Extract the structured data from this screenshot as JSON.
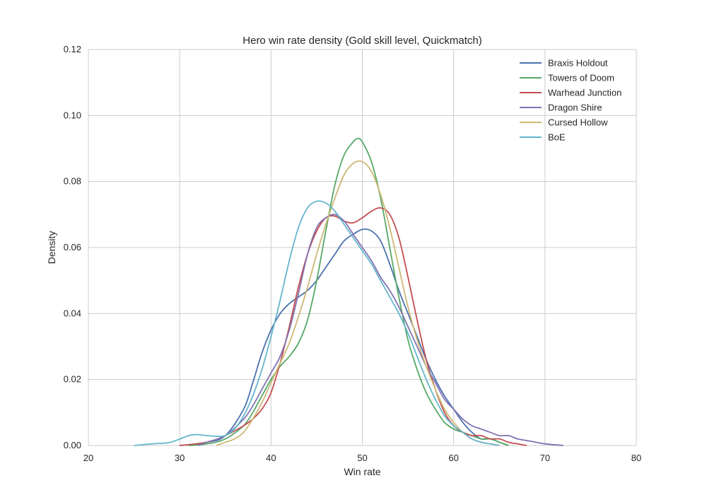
{
  "chart_data": {
    "type": "line",
    "title": "Hero win rate density (Gold skill level, Quickmatch)",
    "xlabel": "Win rate",
    "ylabel": "Density",
    "xlim": [
      20,
      80
    ],
    "ylim": [
      0,
      0.12
    ],
    "xticks": [
      "20",
      "30",
      "40",
      "50",
      "60",
      "70",
      "80"
    ],
    "yticks": [
      "0.00",
      "0.02",
      "0.04",
      "0.06",
      "0.08",
      "0.10",
      "0.12"
    ],
    "grid": true,
    "legend_position": "top-right",
    "series": [
      {
        "name": "Braxis Holdout",
        "color": "#4c72b0",
        "points": [
          [
            30,
            0.0
          ],
          [
            33,
            0.001
          ],
          [
            35,
            0.003
          ],
          [
            37,
            0.011
          ],
          [
            38,
            0.019
          ],
          [
            39,
            0.028
          ],
          [
            40,
            0.035
          ],
          [
            41,
            0.04
          ],
          [
            42,
            0.043
          ],
          [
            43,
            0.045
          ],
          [
            44,
            0.047
          ],
          [
            45,
            0.05
          ],
          [
            46,
            0.054
          ],
          [
            47,
            0.058
          ],
          [
            48,
            0.062
          ],
          [
            49,
            0.064
          ],
          [
            50,
            0.0655
          ],
          [
            51,
            0.065
          ],
          [
            52,
            0.062
          ],
          [
            53,
            0.055
          ],
          [
            54,
            0.047
          ],
          [
            55,
            0.04
          ],
          [
            56,
            0.033
          ],
          [
            57,
            0.026
          ],
          [
            58,
            0.02
          ],
          [
            59,
            0.015
          ],
          [
            60,
            0.011
          ],
          [
            61,
            0.007
          ],
          [
            62,
            0.004
          ],
          [
            63,
            0.002
          ],
          [
            64,
            0.002
          ],
          [
            65,
            0.001
          ],
          [
            66,
            0.0
          ]
        ]
      },
      {
        "name": "Towers of Doom",
        "color": "#55a868",
        "points": [
          [
            31,
            0.0
          ],
          [
            33,
            0.0005
          ],
          [
            35,
            0.002
          ],
          [
            37,
            0.006
          ],
          [
            38,
            0.01
          ],
          [
            39,
            0.015
          ],
          [
            40,
            0.02
          ],
          [
            41,
            0.024
          ],
          [
            42,
            0.027
          ],
          [
            43,
            0.031
          ],
          [
            44,
            0.038
          ],
          [
            45,
            0.05
          ],
          [
            46,
            0.065
          ],
          [
            47,
            0.079
          ],
          [
            48,
            0.088
          ],
          [
            49,
            0.092
          ],
          [
            49.5,
            0.093
          ],
          [
            50,
            0.092
          ],
          [
            51,
            0.086
          ],
          [
            52,
            0.075
          ],
          [
            53,
            0.06
          ],
          [
            54,
            0.045
          ],
          [
            55,
            0.032
          ],
          [
            56,
            0.023
          ],
          [
            57,
            0.016
          ],
          [
            58,
            0.011
          ],
          [
            59,
            0.007
          ],
          [
            60,
            0.005
          ],
          [
            61,
            0.004
          ],
          [
            62,
            0.003
          ],
          [
            63,
            0.002
          ],
          [
            64,
            0.002
          ],
          [
            65,
            0.001
          ],
          [
            66,
            0.0
          ]
        ]
      },
      {
        "name": "Warhead Junction",
        "color": "#c44e52",
        "points": [
          [
            30,
            0.0
          ],
          [
            33,
            0.001
          ],
          [
            35,
            0.003
          ],
          [
            37,
            0.006
          ],
          [
            38,
            0.008
          ],
          [
            39,
            0.011
          ],
          [
            40,
            0.016
          ],
          [
            41,
            0.025
          ],
          [
            42,
            0.036
          ],
          [
            43,
            0.048
          ],
          [
            44,
            0.058
          ],
          [
            45,
            0.065
          ],
          [
            46,
            0.069
          ],
          [
            47,
            0.0695
          ],
          [
            48,
            0.068
          ],
          [
            49,
            0.0675
          ],
          [
            50,
            0.069
          ],
          [
            51,
            0.071
          ],
          [
            52,
            0.072
          ],
          [
            53,
            0.07
          ],
          [
            54,
            0.063
          ],
          [
            55,
            0.051
          ],
          [
            56,
            0.038
          ],
          [
            57,
            0.026
          ],
          [
            58,
            0.017
          ],
          [
            59,
            0.01
          ],
          [
            60,
            0.006
          ],
          [
            61,
            0.004
          ],
          [
            62,
            0.003
          ],
          [
            63,
            0.003
          ],
          [
            64,
            0.002
          ],
          [
            65,
            0.002
          ],
          [
            66,
            0.001
          ],
          [
            67,
            0.0005
          ],
          [
            68,
            0.0
          ]
        ]
      },
      {
        "name": "Dragon Shire",
        "color": "#8172b2",
        "points": [
          [
            32,
            0.0
          ],
          [
            33,
            0.001
          ],
          [
            35,
            0.003
          ],
          [
            37,
            0.008
          ],
          [
            38,
            0.012
          ],
          [
            39,
            0.017
          ],
          [
            40,
            0.022
          ],
          [
            41,
            0.027
          ],
          [
            42,
            0.035
          ],
          [
            43,
            0.046
          ],
          [
            44,
            0.058
          ],
          [
            45,
            0.066
          ],
          [
            46,
            0.069
          ],
          [
            47,
            0.07
          ],
          [
            48,
            0.068
          ],
          [
            49,
            0.064
          ],
          [
            50,
            0.06
          ],
          [
            51,
            0.056
          ],
          [
            52,
            0.051
          ],
          [
            53,
            0.047
          ],
          [
            54,
            0.042
          ],
          [
            55,
            0.036
          ],
          [
            56,
            0.03
          ],
          [
            57,
            0.024
          ],
          [
            58,
            0.019
          ],
          [
            59,
            0.014
          ],
          [
            60,
            0.011
          ],
          [
            61,
            0.008
          ],
          [
            62,
            0.006
          ],
          [
            63,
            0.005
          ],
          [
            64,
            0.004
          ],
          [
            65,
            0.003
          ],
          [
            66,
            0.003
          ],
          [
            67,
            0.002
          ],
          [
            68,
            0.0015
          ],
          [
            69,
            0.001
          ],
          [
            70,
            0.0005
          ],
          [
            72,
            0.0
          ]
        ]
      },
      {
        "name": "Cursed Hollow",
        "color": "#ccb974",
        "points": [
          [
            34,
            0.0
          ],
          [
            35,
            0.001
          ],
          [
            36,
            0.002
          ],
          [
            37,
            0.004
          ],
          [
            38,
            0.008
          ],
          [
            39,
            0.013
          ],
          [
            40,
            0.019
          ],
          [
            41,
            0.025
          ],
          [
            42,
            0.031
          ],
          [
            43,
            0.039
          ],
          [
            44,
            0.048
          ],
          [
            45,
            0.058
          ],
          [
            46,
            0.067
          ],
          [
            47,
            0.075
          ],
          [
            48,
            0.082
          ],
          [
            49,
            0.0855
          ],
          [
            50,
            0.086
          ],
          [
            51,
            0.083
          ],
          [
            52,
            0.076
          ],
          [
            53,
            0.066
          ],
          [
            54,
            0.054
          ],
          [
            55,
            0.042
          ],
          [
            56,
            0.032
          ],
          [
            57,
            0.024
          ],
          [
            58,
            0.017
          ],
          [
            59,
            0.011
          ],
          [
            60,
            0.007
          ],
          [
            61,
            0.004
          ],
          [
            62,
            0.002
          ],
          [
            63,
            0.001
          ],
          [
            64,
            0.0005
          ],
          [
            65,
            0.0
          ]
        ]
      },
      {
        "name": "BoE",
        "color": "#64b5cd",
        "points": [
          [
            25,
            0.0
          ],
          [
            27,
            0.0005
          ],
          [
            29,
            0.001
          ],
          [
            31,
            0.003
          ],
          [
            32,
            0.0033
          ],
          [
            33,
            0.003
          ],
          [
            34,
            0.0028
          ],
          [
            35,
            0.003
          ],
          [
            36,
            0.005
          ],
          [
            37,
            0.009
          ],
          [
            38,
            0.015
          ],
          [
            39,
            0.023
          ],
          [
            40,
            0.033
          ],
          [
            41,
            0.044
          ],
          [
            42,
            0.056
          ],
          [
            43,
            0.066
          ],
          [
            44,
            0.072
          ],
          [
            45,
            0.074
          ],
          [
            46,
            0.0735
          ],
          [
            47,
            0.071
          ],
          [
            48,
            0.067
          ],
          [
            49,
            0.063
          ],
          [
            50,
            0.059
          ],
          [
            51,
            0.055
          ],
          [
            52,
            0.05
          ],
          [
            53,
            0.045
          ],
          [
            54,
            0.04
          ],
          [
            55,
            0.034
          ],
          [
            56,
            0.027
          ],
          [
            57,
            0.02
          ],
          [
            58,
            0.014
          ],
          [
            59,
            0.009
          ],
          [
            60,
            0.006
          ],
          [
            61,
            0.004
          ],
          [
            62,
            0.002
          ],
          [
            63,
            0.001
          ],
          [
            64,
            0.0005
          ],
          [
            65,
            0.0
          ]
        ]
      }
    ]
  }
}
